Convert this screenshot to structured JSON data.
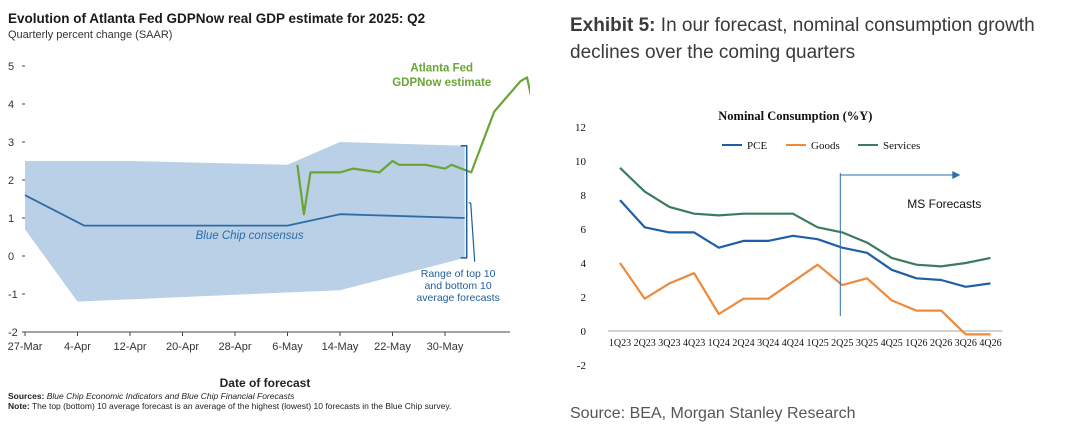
{
  "left": {
    "title": "Evolution of Atlanta Fed GDPNow real GDP estimate for 2025: Q2",
    "subtitle": "Quarterly percent change (SAAR)",
    "xlabel": "Date of forecast",
    "sources_label": "Sources:",
    "sources_text": "Blue Chip Economic Indicators and Blue Chip Financial Forecasts",
    "note_label": "Note:",
    "note_text": "The top (bottom) 10 average forecast is an average of the highest (lowest) 10 forecasts in the Blue Chip survey.",
    "colors": {
      "band": "#b9d0e6",
      "consensus": "#2e6ca8",
      "gdpnow": "#6aa536",
      "annotation": "#1f5e9c"
    }
  },
  "right": {
    "exhibit_label": "Exhibit 5:",
    "headline": "In our forecast, nominal consumption growth declines over the coming quarters",
    "source": "Source: BEA, Morgan Stanley Research",
    "colors": {
      "pce": "#1f5fa8",
      "goods": "#ed8a3c",
      "services": "#3a7d5c"
    }
  },
  "chart_data": [
    {
      "type": "line",
      "title": "Evolution of Atlanta Fed GDPNow real GDP estimate for 2025: Q2",
      "subtitle": "Quarterly percent change (SAAR)",
      "xlabel": "Date of forecast",
      "ylabel": "",
      "x_ticks": [
        "27-Mar",
        "4-Apr",
        "12-Apr",
        "20-Apr",
        "28-Apr",
        "6-May",
        "14-May",
        "22-May",
        "30-May"
      ],
      "y_ticks": [
        "-2",
        "-1",
        "0",
        "1",
        "2",
        "3",
        "4",
        "5"
      ],
      "ylim": [
        -2,
        5.3
      ],
      "x_units": "days since 27-Mar",
      "band": {
        "name": "Range of top 10 and bottom 10 average forecasts",
        "upper": [
          [
            0,
            2.5
          ],
          [
            16,
            2.5
          ],
          [
            40,
            2.4
          ],
          [
            48,
            3.0
          ],
          [
            67,
            2.9
          ]
        ],
        "lower": [
          [
            0,
            0.7
          ],
          [
            8,
            -1.2
          ],
          [
            48,
            -0.9
          ],
          [
            67,
            -0.05
          ]
        ]
      },
      "series": [
        {
          "name": "Blue Chip consensus",
          "points": [
            [
              0,
              1.6
            ],
            [
              9,
              0.8
            ],
            [
              40,
              0.8
            ],
            [
              48,
              1.1
            ],
            [
              67,
              1.0
            ]
          ]
        },
        {
          "name": "Atlanta Fed GDPNow estimate",
          "points": [
            [
              41.5,
              2.4
            ],
            [
              42.5,
              1.1
            ],
            [
              43.5,
              2.2
            ],
            [
              48,
              2.2
            ],
            [
              50,
              2.3
            ],
            [
              54,
              2.2
            ],
            [
              56,
              2.5
            ],
            [
              57,
              2.4
            ],
            [
              61,
              2.4
            ],
            [
              64,
              2.3
            ],
            [
              65,
              2.4
            ],
            [
              68,
              2.2
            ],
            [
              71.5,
              3.8
            ],
            [
              75.5,
              4.6
            ],
            [
              76.5,
              4.7
            ],
            [
              78,
              3.5
            ],
            [
              79.5,
              3.8
            ]
          ]
        }
      ],
      "annotations": [
        "Blue Chip consensus",
        "Atlanta Fed GDPNow estimate",
        "Range of top 10 and bottom 10 average forecasts"
      ]
    },
    {
      "type": "line",
      "title": "Nominal Consumption (%Y)",
      "xlabel": "",
      "ylabel": "",
      "categories": [
        "1Q23",
        "2Q23",
        "3Q23",
        "4Q23",
        "1Q24",
        "2Q24",
        "3Q24",
        "4Q24",
        "1Q25",
        "2Q25",
        "3Q25",
        "4Q25",
        "1Q26",
        "2Q26",
        "3Q26",
        "4Q26"
      ],
      "y_ticks": [
        "-2",
        "0",
        "2",
        "4",
        "6",
        "8",
        "10",
        "12"
      ],
      "ylim": [
        -2,
        12
      ],
      "legend": "top",
      "series": [
        {
          "name": "PCE",
          "values": [
            7.7,
            6.1,
            5.8,
            5.8,
            4.9,
            5.3,
            5.3,
            5.6,
            5.4,
            4.9,
            4.6,
            3.6,
            3.1,
            3.0,
            2.6,
            2.8
          ]
        },
        {
          "name": "Goods",
          "values": [
            4.0,
            1.9,
            2.8,
            3.4,
            1.0,
            1.9,
            1.9,
            2.9,
            3.9,
            2.7,
            3.1,
            1.8,
            1.2,
            1.2,
            -0.2,
            -0.2
          ]
        },
        {
          "name": "Services",
          "values": [
            9.6,
            8.2,
            7.3,
            6.9,
            6.8,
            6.9,
            6.9,
            6.9,
            6.1,
            5.8,
            5.2,
            4.3,
            3.9,
            3.8,
            4.0,
            4.3
          ]
        }
      ],
      "annotations": [
        "MS Forecasts"
      ],
      "forecast_start": "2Q25"
    }
  ]
}
